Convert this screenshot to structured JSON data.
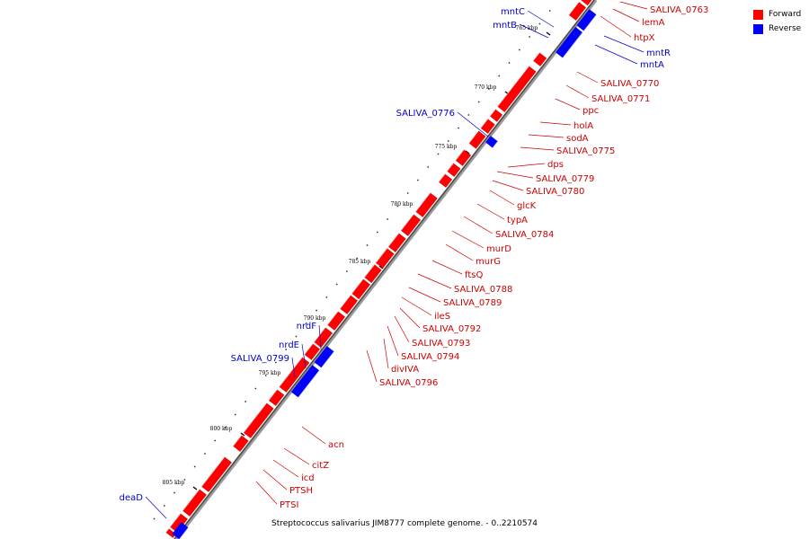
{
  "colors": {
    "forward": "#ff0000",
    "reverse": "#0000ff",
    "backbone": "#555555",
    "label_forward": "#cc0000",
    "label_reverse": "#0000cc"
  },
  "legend": [
    {
      "label": "Forward",
      "color": "#ff0000"
    },
    {
      "label": "Reverse",
      "color": "#0000ff"
    }
  ],
  "caption": "Streptococcus salivarius JIM8777 complete genome. - 0..2210574",
  "ticks": [
    "765 kbp",
    "770 kbp",
    "775 kbp",
    "780 kbp",
    "785 kbp",
    "790 kbp",
    "795 kbp",
    "800 kbp",
    "805 kbp"
  ],
  "forward_labels": [
    "SALIVA_0763",
    "lemA",
    "htpX",
    "SALIVA_0770",
    "SALIVA_0771",
    "ppc",
    "holA",
    "sodA",
    "SALIVA_0775",
    "dps",
    "SALIVA_0779",
    "SALIVA_0780",
    "glcK",
    "typA",
    "SALIVA_0784",
    "murD",
    "murG",
    "ftsQ",
    "SALIVA_0788",
    "SALIVA_0789",
    "ileS",
    "SALIVA_0792",
    "SALIVA_0793",
    "SALIVA_0794",
    "divIVA",
    "SALIVA_0796",
    "acn",
    "citZ",
    "icd",
    "PTSH",
    "PTSI"
  ],
  "reverse_labels": [
    "mntC",
    "mntB",
    "mntR",
    "mntA",
    "SALIVA_0776",
    "nrdF",
    "nrdE",
    "SALIVA_0799",
    "deaD"
  ]
}
